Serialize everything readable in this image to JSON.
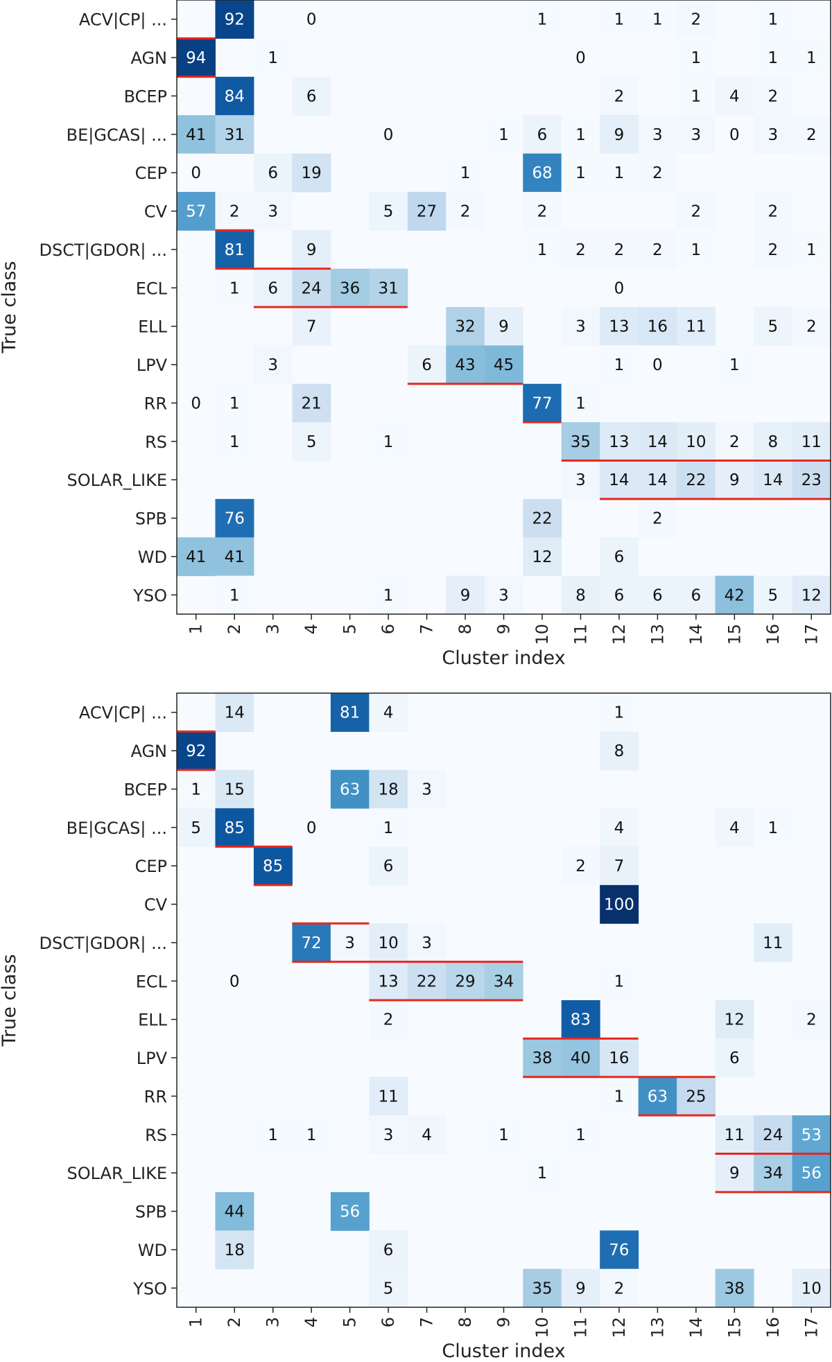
{
  "chart_data": [
    {
      "type": "heatmap",
      "xlabel": "Cluster index",
      "ylabel": "True class",
      "x": [
        "1",
        "2",
        "3",
        "4",
        "5",
        "6",
        "7",
        "8",
        "9",
        "10",
        "11",
        "12",
        "13",
        "14",
        "15",
        "16",
        "17"
      ],
      "y": [
        "ACV|CP| ...",
        "AGN",
        "BCEP",
        "BE|GCAS| ...",
        "CEP",
        "CV",
        "DSCT|GDOR| ...",
        "ECL",
        "ELL",
        "LPV",
        "RR",
        "RS",
        "SOLAR_LIKE",
        "SPB",
        "WD",
        "YSO"
      ],
      "colormap": "Blues",
      "vmin": 0,
      "vmax": 100,
      "values": [
        [
          null,
          92,
          null,
          0,
          null,
          null,
          null,
          null,
          null,
          1,
          null,
          1,
          1,
          2,
          null,
          1,
          null
        ],
        [
          94,
          null,
          1,
          null,
          null,
          null,
          null,
          null,
          null,
          null,
          0,
          null,
          null,
          1,
          null,
          1,
          1
        ],
        [
          null,
          84,
          null,
          6,
          null,
          null,
          null,
          null,
          null,
          null,
          null,
          2,
          null,
          1,
          4,
          2,
          null
        ],
        [
          41,
          31,
          null,
          null,
          null,
          0,
          null,
          null,
          1,
          6,
          1,
          9,
          3,
          3,
          0,
          3,
          2
        ],
        [
          0,
          null,
          6,
          19,
          null,
          null,
          null,
          1,
          null,
          68,
          1,
          1,
          2,
          null,
          null,
          null,
          null
        ],
        [
          57,
          2,
          3,
          null,
          null,
          5,
          27,
          2,
          null,
          2,
          null,
          null,
          null,
          2,
          null,
          2,
          null
        ],
        [
          null,
          81,
          null,
          9,
          null,
          null,
          null,
          null,
          null,
          1,
          2,
          2,
          2,
          1,
          null,
          2,
          1
        ],
        [
          null,
          1,
          6,
          24,
          36,
          31,
          null,
          null,
          null,
          null,
          null,
          0,
          null,
          null,
          null,
          null,
          null
        ],
        [
          null,
          null,
          null,
          7,
          null,
          null,
          null,
          32,
          9,
          null,
          3,
          13,
          16,
          11,
          null,
          5,
          2
        ],
        [
          null,
          null,
          3,
          null,
          null,
          null,
          6,
          43,
          45,
          null,
          null,
          1,
          0,
          null,
          1,
          null,
          null
        ],
        [
          0,
          1,
          null,
          21,
          null,
          null,
          null,
          null,
          null,
          77,
          1,
          null,
          null,
          null,
          null,
          null,
          null
        ],
        [
          null,
          1,
          null,
          5,
          null,
          1,
          null,
          null,
          null,
          null,
          35,
          13,
          14,
          10,
          2,
          8,
          11
        ],
        [
          null,
          null,
          null,
          null,
          null,
          null,
          null,
          null,
          null,
          null,
          3,
          14,
          14,
          22,
          9,
          14,
          23
        ],
        [
          null,
          76,
          null,
          null,
          null,
          null,
          null,
          null,
          null,
          22,
          null,
          null,
          2,
          null,
          null,
          null,
          null
        ],
        [
          41,
          41,
          null,
          null,
          null,
          null,
          null,
          null,
          null,
          12,
          null,
          6,
          null,
          null,
          null,
          null,
          null
        ],
        [
          null,
          1,
          null,
          null,
          null,
          1,
          null,
          9,
          3,
          null,
          8,
          6,
          6,
          6,
          42,
          5,
          12
        ]
      ],
      "highlight_segments": [
        {
          "row": 1,
          "col_start": 1,
          "col_end": 1,
          "edges": "top-bottom"
        },
        {
          "row": 6,
          "col_start": 2,
          "col_end": 2,
          "edges": "top"
        },
        {
          "row": 7,
          "col_start": 2,
          "col_end": 4,
          "edges": "top"
        },
        {
          "row": 7,
          "col_start": 3,
          "col_end": 6,
          "edges": "bottom"
        },
        {
          "row": 9,
          "col_start": 7,
          "col_end": 9,
          "edges": "bottom"
        },
        {
          "row": 10,
          "col_start": 10,
          "col_end": 10,
          "edges": "bottom"
        },
        {
          "row": 12,
          "col_start": 11,
          "col_end": 17,
          "edges": "top"
        },
        {
          "row": 12,
          "col_start": 12,
          "col_end": 17,
          "edges": "bottom"
        }
      ]
    },
    {
      "type": "heatmap",
      "xlabel": "Cluster index",
      "ylabel": "True class",
      "x": [
        "1",
        "2",
        "3",
        "4",
        "5",
        "6",
        "7",
        "8",
        "9",
        "10",
        "11",
        "12",
        "13",
        "14",
        "15",
        "16",
        "17"
      ],
      "y": [
        "ACV|CP| ...",
        "AGN",
        "BCEP",
        "BE|GCAS| ...",
        "CEP",
        "CV",
        "DSCT|GDOR| ...",
        "ECL",
        "ELL",
        "LPV",
        "RR",
        "RS",
        "SOLAR_LIKE",
        "SPB",
        "WD",
        "YSO"
      ],
      "colormap": "Blues",
      "vmin": 0,
      "vmax": 100,
      "values": [
        [
          null,
          14,
          null,
          null,
          81,
          4,
          null,
          null,
          null,
          null,
          null,
          1,
          null,
          null,
          null,
          null,
          null
        ],
        [
          92,
          null,
          null,
          null,
          null,
          null,
          null,
          null,
          null,
          null,
          null,
          8,
          null,
          null,
          null,
          null,
          null
        ],
        [
          1,
          15,
          null,
          null,
          63,
          18,
          3,
          null,
          null,
          null,
          null,
          null,
          null,
          null,
          null,
          null,
          null
        ],
        [
          5,
          85,
          null,
          0,
          null,
          1,
          null,
          null,
          null,
          null,
          null,
          4,
          null,
          null,
          4,
          1,
          null
        ],
        [
          null,
          null,
          85,
          null,
          null,
          6,
          null,
          null,
          null,
          null,
          2,
          7,
          null,
          null,
          null,
          null,
          null
        ],
        [
          null,
          null,
          null,
          null,
          null,
          null,
          null,
          null,
          null,
          null,
          null,
          100,
          null,
          null,
          null,
          null,
          null
        ],
        [
          null,
          null,
          null,
          72,
          3,
          10,
          3,
          null,
          null,
          null,
          null,
          null,
          null,
          null,
          null,
          11,
          null
        ],
        [
          null,
          0,
          null,
          null,
          null,
          13,
          22,
          29,
          34,
          null,
          null,
          1,
          null,
          null,
          null,
          null,
          null
        ],
        [
          null,
          null,
          null,
          null,
          null,
          2,
          null,
          null,
          null,
          null,
          83,
          null,
          null,
          null,
          12,
          null,
          2
        ],
        [
          null,
          null,
          null,
          null,
          null,
          null,
          null,
          null,
          null,
          38,
          40,
          16,
          null,
          null,
          6,
          null,
          null
        ],
        [
          null,
          null,
          null,
          null,
          null,
          11,
          null,
          null,
          null,
          null,
          null,
          1,
          63,
          25,
          null,
          null,
          null
        ],
        [
          null,
          null,
          1,
          1,
          null,
          3,
          4,
          null,
          1,
          null,
          1,
          null,
          null,
          null,
          11,
          24,
          53
        ],
        [
          null,
          null,
          null,
          null,
          null,
          null,
          null,
          null,
          null,
          1,
          null,
          null,
          null,
          null,
          9,
          34,
          56
        ],
        [
          null,
          44,
          null,
          null,
          56,
          null,
          null,
          null,
          null,
          null,
          null,
          null,
          null,
          null,
          null,
          null,
          null
        ],
        [
          null,
          18,
          null,
          null,
          null,
          6,
          null,
          null,
          null,
          null,
          null,
          76,
          null,
          null,
          null,
          null,
          null
        ],
        [
          null,
          null,
          null,
          null,
          null,
          5,
          null,
          null,
          null,
          35,
          9,
          2,
          null,
          null,
          38,
          null,
          10
        ]
      ],
      "highlight_segments": [
        {
          "row": 1,
          "col_start": 1,
          "col_end": 1,
          "edges": "top-bottom"
        },
        {
          "row": 3,
          "col_start": 2,
          "col_end": 2,
          "edges": "bottom"
        },
        {
          "row": 4,
          "col_start": 3,
          "col_end": 3,
          "edges": "top-bottom"
        },
        {
          "row": 6,
          "col_start": 4,
          "col_end": 5,
          "edges": "top"
        },
        {
          "row": 6,
          "col_start": 4,
          "col_end": 9,
          "edges": "bottom"
        },
        {
          "row": 7,
          "col_start": 6,
          "col_end": 9,
          "edges": "bottom"
        },
        {
          "row": 9,
          "col_start": 10,
          "col_end": 12,
          "edges": "top"
        },
        {
          "row": 9,
          "col_start": 10,
          "col_end": 14,
          "edges": "bottom"
        },
        {
          "row": 10,
          "col_start": 13,
          "col_end": 14,
          "edges": "bottom"
        },
        {
          "row": 11,
          "col_start": 15,
          "col_end": 17,
          "edges": "bottom"
        },
        {
          "row": 12,
          "col_start": 15,
          "col_end": 17,
          "edges": "bottom"
        }
      ]
    }
  ],
  "colors": {
    "background_cell": "#f7fbff",
    "highlight_line": "#e8261f",
    "frame": "#222222"
  }
}
